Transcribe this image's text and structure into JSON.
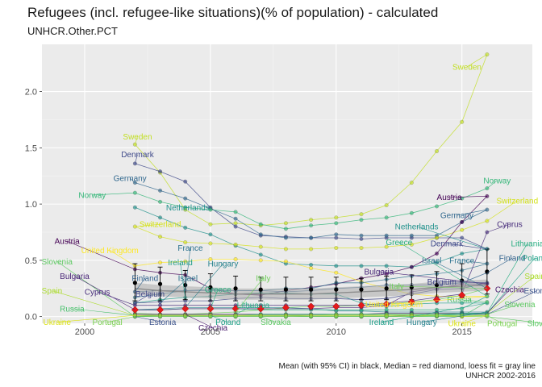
{
  "title": "Refugees (incl. refugee-like situations)(% of population) - calculated",
  "subtitle": "UNHCR.Other.PCT",
  "caption_line1": "Mean (with 95% CI) in black, Median = red diamond, loess fit = gray line",
  "caption_line2": "UNHCR 2002-2016",
  "chart_data": {
    "type": "line",
    "xlim": [
      1998.3,
      2017.8
    ],
    "ylim": [
      -0.06,
      2.42
    ],
    "x_ticks": [
      2000,
      2005,
      2010,
      2015
    ],
    "y_ticks": [
      0.0,
      0.5,
      1.0,
      1.5,
      2.0
    ],
    "x_tick_labels": [
      "2000",
      "2005",
      "2010",
      "2015"
    ],
    "y_tick_labels": [
      "0.0",
      "0.5",
      "1.0",
      "1.5",
      "2.0"
    ],
    "grid": true,
    "x": [
      2002,
      2003,
      2004,
      2005,
      2006,
      2007,
      2008,
      2009,
      2010,
      2011,
      2012,
      2013,
      2014,
      2015,
      2016
    ],
    "series": [
      {
        "name": "Sweden",
        "color": "#c2df23",
        "values": [
          1.53,
          1.28,
          0.95,
          0.82,
          0.83,
          0.81,
          0.83,
          0.86,
          0.88,
          0.91,
          0.99,
          1.19,
          1.47,
          1.73,
          2.33
        ]
      },
      {
        "name": "Denmark",
        "color": "#3e4989",
        "values": [
          1.36,
          1.29,
          1.2,
          0.97,
          0.8,
          0.72,
          0.71,
          0.7,
          0.7,
          0.69,
          0.7,
          0.7,
          0.7,
          0.7,
          0.6
        ]
      },
      {
        "name": "Germany",
        "color": "#31688e",
        "values": [
          1.19,
          1.12,
          1.05,
          0.96,
          0.87,
          0.73,
          0.7,
          0.7,
          0.73,
          0.72,
          0.72,
          0.72,
          0.72,
          0.84,
          0.95
        ]
      },
      {
        "name": "Norway",
        "color": "#35b779",
        "values": [
          1.1,
          1.02,
          0.97,
          0.95,
          0.93,
          0.82,
          0.78,
          0.81,
          0.83,
          0.86,
          0.88,
          0.92,
          0.98,
          1.05,
          1.14
        ]
      },
      {
        "name": "Netherlands",
        "color": "#21918c",
        "values": [
          0.97,
          0.88,
          0.79,
          0.73,
          0.63,
          0.55,
          0.47,
          0.46,
          0.45,
          0.45,
          0.45,
          0.44,
          0.48,
          0.56,
          0.6
        ]
      },
      {
        "name": "Switzerland",
        "color": "#d4e21a",
        "values": [
          0.8,
          0.71,
          0.66,
          0.65,
          0.64,
          0.62,
          0.6,
          0.6,
          0.61,
          0.61,
          0.62,
          0.64,
          0.7,
          0.77,
          0.85
        ]
      },
      {
        "name": "Austria",
        "color": "#440154",
        "values": [
          0.42,
          0.39,
          0.37,
          0.25,
          0.2,
          0.19,
          0.23,
          0.26,
          0.29,
          0.34,
          0.38,
          0.44,
          0.56,
          0.84,
          1.07
        ]
      },
      {
        "name": "United Kingdom",
        "color": "#fde725",
        "values": [
          0.45,
          0.48,
          0.49,
          0.51,
          0.51,
          0.5,
          0.49,
          0.43,
          0.39,
          0.31,
          0.25,
          0.2,
          0.18,
          0.18,
          0.18
        ]
      },
      {
        "name": "France",
        "color": "#2c728e",
        "values": [
          0.17,
          0.2,
          0.23,
          0.24,
          0.23,
          0.23,
          0.25,
          0.25,
          0.3,
          0.3,
          0.33,
          0.36,
          0.38,
          0.41,
          0.47
        ]
      },
      {
        "name": "Ireland",
        "color": "#1f9e89",
        "values": [
          0.12,
          0.15,
          0.17,
          0.18,
          0.2,
          0.21,
          0.21,
          0.2,
          0.2,
          0.12,
          0.09,
          0.11,
          0.12,
          0.12,
          0.12
        ]
      },
      {
        "name": "Hungary",
        "color": "#26828e",
        "values": [
          0.06,
          0.07,
          0.08,
          0.08,
          0.08,
          0.08,
          0.08,
          0.07,
          0.05,
          0.05,
          0.04,
          0.04,
          0.04,
          0.04,
          0.04
        ]
      },
      {
        "name": "Italy",
        "color": "#6ece58",
        "values": [
          0.03,
          0.02,
          0.02,
          0.03,
          0.04,
          0.06,
          0.08,
          0.09,
          0.09,
          0.1,
          0.11,
          0.13,
          0.15,
          0.19,
          0.25
        ]
      },
      {
        "name": "Greece",
        "color": "#29af7f",
        "values": [
          0.06,
          0.06,
          0.07,
          0.07,
          0.07,
          0.06,
          0.06,
          0.06,
          0.06,
          0.06,
          0.06,
          0.06,
          0.06,
          0.07,
          0.18
        ]
      },
      {
        "name": "Finland",
        "color": "#33638d",
        "values": [
          0.22,
          0.23,
          0.23,
          0.23,
          0.23,
          0.23,
          0.22,
          0.23,
          0.25,
          0.26,
          0.28,
          0.28,
          0.28,
          0.3,
          0.39
        ]
      },
      {
        "name": "Belgium",
        "color": "#404688",
        "values": [
          0.12,
          0.13,
          0.14,
          0.14,
          0.16,
          0.17,
          0.16,
          0.16,
          0.16,
          0.15,
          0.16,
          0.2,
          0.24,
          0.25,
          0.3
        ]
      },
      {
        "name": "Bulgaria",
        "color": "#482677",
        "values": [
          0.06,
          0.06,
          0.07,
          0.07,
          0.07,
          0.07,
          0.07,
          0.07,
          0.08,
          0.08,
          0.1,
          0.22,
          0.25,
          0.29,
          0.29
        ]
      },
      {
        "name": "Cyprus",
        "color": "#472d7b",
        "values": [
          0.1,
          0.1,
          0.1,
          0.1,
          0.1,
          0.1,
          0.1,
          0.1,
          0.1,
          0.1,
          0.12,
          0.14,
          0.17,
          0.2,
          0.75
        ]
      },
      {
        "name": "Czechia",
        "color": "#481a6c",
        "values": [
          0.02,
          0.02,
          0.02,
          0.02,
          0.02,
          0.02,
          0.02,
          0.02,
          0.02,
          0.02,
          0.03,
          0.03,
          0.03,
          0.03,
          0.03
        ]
      },
      {
        "name": "Lithuania",
        "color": "#27ad81",
        "values": [
          0.01,
          0.01,
          0.01,
          0.01,
          0.01,
          0.02,
          0.02,
          0.02,
          0.02,
          0.02,
          0.02,
          0.02,
          0.02,
          0.03,
          0.03
        ]
      },
      {
        "name": "Spain",
        "color": "#addc30",
        "values": [
          0.01,
          0.01,
          0.01,
          0.01,
          0.01,
          0.01,
          0.01,
          0.01,
          0.01,
          0.01,
          0.01,
          0.01,
          0.01,
          0.01,
          0.03
        ]
      },
      {
        "name": "Slovenia",
        "color": "#5ec962",
        "values": [
          0.0,
          0.01,
          0.01,
          0.01,
          0.01,
          0.01,
          0.01,
          0.01,
          0.02,
          0.02,
          0.02,
          0.02,
          0.02,
          0.02,
          0.02
        ]
      },
      {
        "name": "Russia",
        "color": "#4ac16d",
        "values": [
          0.01,
          0.01,
          0.01,
          0.01,
          0.01,
          0.01,
          0.01,
          0.0,
          0.0,
          0.0,
          0.0,
          0.0,
          0.0,
          0.0,
          0.13
        ]
      },
      {
        "name": "Estonia",
        "color": "#3b528b",
        "values": [
          0.0,
          0.0,
          0.0,
          0.0,
          0.0,
          0.0,
          0.0,
          0.0,
          0.0,
          0.0,
          0.0,
          0.01,
          0.01,
          0.02,
          0.02
        ]
      },
      {
        "name": "Poland",
        "color": "#1fa187",
        "values": [
          0.0,
          0.01,
          0.01,
          0.01,
          0.01,
          0.01,
          0.01,
          0.01,
          0.01,
          0.01,
          0.01,
          0.01,
          0.01,
          0.02,
          0.03
        ]
      },
      {
        "name": "Slovakia",
        "color": "#5cc863",
        "values": [
          0.0,
          0.0,
          0.0,
          0.0,
          0.0,
          0.0,
          0.0,
          0.0,
          0.0,
          0.0,
          0.0,
          0.0,
          0.0,
          0.0,
          0.0
        ]
      },
      {
        "name": "Ukraine",
        "color": "#dce319",
        "values": [
          0.01,
          0.01,
          0.01,
          0.01,
          0.01,
          0.01,
          0.01,
          0.01,
          0.01,
          0.01,
          0.01,
          0.01,
          0.01,
          0.0,
          0.01
        ]
      },
      {
        "name": "Portugal",
        "color": "#7ad151",
        "values": [
          0.0,
          0.0,
          0.0,
          0.0,
          0.0,
          0.0,
          0.0,
          0.0,
          0.0,
          0.0,
          0.0,
          0.0,
          0.01,
          0.01,
          0.01
        ]
      }
    ],
    "series_labels": [
      {
        "text": "Sweden",
        "series": "Sweden",
        "x": 2002.1,
        "y": 1.6,
        "lx": 2002,
        "ly": 1.53
      },
      {
        "text": "Denmark",
        "series": "Denmark",
        "x": 2002.1,
        "y": 1.44,
        "lx": 2002,
        "ly": 1.36
      },
      {
        "text": "Germany",
        "series": "Germany",
        "x": 2001.8,
        "y": 1.23,
        "lx": 2002,
        "ly": 1.19
      },
      {
        "text": "Norway",
        "series": "Norway",
        "x": 2000.3,
        "y": 1.08,
        "lx": 2002,
        "ly": 1.1
      },
      {
        "text": "Netherlands",
        "series": "Netherlands",
        "x": 2004.1,
        "y": 0.97,
        "lx": 2004,
        "ly": 0.97
      },
      {
        "text": "Switzerland",
        "series": "Switzerland",
        "x": 2003.0,
        "y": 0.82,
        "lx": 2002,
        "ly": 0.8
      },
      {
        "text": "Austria",
        "series": "Austria",
        "x": 1999.3,
        "y": 0.67,
        "lx": 2002,
        "ly": 0.42
      },
      {
        "text": "United Kingdom",
        "series": "United Kingdom",
        "x": 2001.0,
        "y": 0.59,
        "lx": 2002,
        "ly": 0.45
      },
      {
        "text": "France",
        "series": "France",
        "x": 2004.2,
        "y": 0.61,
        "lx": 2004,
        "ly": 0.23
      },
      {
        "text": "Ireland",
        "series": "Ireland",
        "x": 2003.8,
        "y": 0.48,
        "lx": 2004,
        "ly": 0.17
      },
      {
        "text": "Hungary",
        "series": "Hungary",
        "x": 2005.5,
        "y": 0.47,
        "lx": 2004,
        "ly": 0.08
      },
      {
        "text": "Slovenia",
        "series": "Slovenia",
        "x": 1998.9,
        "y": 0.49,
        "lx": 2002,
        "ly": 0.0
      },
      {
        "text": "Bulgaria",
        "series": "Bulgaria",
        "x": 1999.6,
        "y": 0.36,
        "lx": 2002,
        "ly": 0.06
      },
      {
        "text": "Finland",
        "series": "Finland",
        "x": 2002.4,
        "y": 0.34,
        "lx": 2002,
        "ly": 0.22
      },
      {
        "text": "Israel",
        "series": "",
        "x": 2004.1,
        "y": 0.34,
        "lx": 2003,
        "ly": 0.12
      },
      {
        "text": "Italy",
        "series": "Italy",
        "x": 2007.1,
        "y": 0.34,
        "lx": 2006,
        "ly": 0.04
      },
      {
        "text": "Spain",
        "series": "Spain",
        "x": 1998.7,
        "y": 0.23,
        "lx": 2002,
        "ly": 0.01
      },
      {
        "text": "Cyprus",
        "series": "Cyprus",
        "x": 2000.5,
        "y": 0.22,
        "lx": 2002,
        "ly": 0.1
      },
      {
        "text": "Belgium",
        "series": "Belgium",
        "x": 2002.6,
        "y": 0.2,
        "lx": 2002,
        "ly": 0.12
      },
      {
        "text": "Greece",
        "series": "Greece",
        "x": 2005.3,
        "y": 0.24,
        "lx": 2005,
        "ly": 0.07
      },
      {
        "text": "Russia",
        "series": "Russia",
        "x": 1999.5,
        "y": 0.07,
        "lx": 2002,
        "ly": 0.01
      },
      {
        "text": "Czechia",
        "series": "Czechia",
        "x": 2005.1,
        "y": -0.1,
        "lx": 2004,
        "ly": 0.02
      },
      {
        "text": "Lithuania",
        "series": "Lithuania",
        "x": 2006.7,
        "y": 0.1,
        "lx": 2006,
        "ly": 0.02
      },
      {
        "text": "Ukraine",
        "series": "Ukraine",
        "x": 1998.9,
        "y": -0.05,
        "lx": 2002,
        "ly": 0.01
      },
      {
        "text": "Portugal",
        "series": "Portugal",
        "x": 2000.9,
        "y": -0.05,
        "lx": 2002,
        "ly": 0.0
      },
      {
        "text": "Estonia",
        "series": "Estonia",
        "x": 2003.1,
        "y": -0.05,
        "lx": 2002,
        "ly": 0.0
      },
      {
        "text": "Poland",
        "series": "Poland",
        "x": 2005.7,
        "y": -0.05,
        "lx": 2005,
        "ly": 0.01
      },
      {
        "text": "Slovakia",
        "series": "Slovakia",
        "x": 2007.6,
        "y": -0.05,
        "lx": 2007,
        "ly": 0.0
      },
      {
        "text": "Sweden",
        "series": "Sweden",
        "x": 2015.2,
        "y": 2.22,
        "lx": 2016,
        "ly": 2.33
      },
      {
        "text": "Norway",
        "series": "Norway",
        "x": 2016.4,
        "y": 1.21,
        "lx": 2016,
        "ly": 1.14
      },
      {
        "text": "Austria",
        "series": "Austria",
        "x": 2014.5,
        "y": 1.06,
        "lx": 2016,
        "ly": 1.07
      },
      {
        "text": "Switzerland",
        "series": "Switzerland",
        "x": 2017.2,
        "y": 1.03,
        "lx": 2016,
        "ly": 0.85
      },
      {
        "text": "Germany",
        "series": "Germany",
        "x": 2014.8,
        "y": 0.9,
        "lx": 2016,
        "ly": 0.95
      },
      {
        "text": "Netherlands",
        "series": "Netherlands",
        "x": 2013.2,
        "y": 0.8,
        "lx": 2016,
        "ly": 0.6
      },
      {
        "text": "Cyprus",
        "series": "Cyprus",
        "x": 2016.9,
        "y": 0.82,
        "lx": 2016,
        "ly": 0.75
      },
      {
        "text": "Greece",
        "series": "Greece",
        "x": 2012.5,
        "y": 0.66,
        "lx": 2016,
        "ly": 0.18
      },
      {
        "text": "Denmark",
        "series": "Denmark",
        "x": 2014.4,
        "y": 0.65,
        "lx": 2016,
        "ly": 0.6
      },
      {
        "text": "Lithuania",
        "series": "Lithuania",
        "x": 2017.6,
        "y": 0.65,
        "lx": 2016,
        "ly": 0.03
      },
      {
        "text": "Israel",
        "series": "",
        "x": 2013.8,
        "y": 0.5,
        "lx": 2016,
        "ly": 0.25
      },
      {
        "text": "France",
        "series": "France",
        "x": 2015.0,
        "y": 0.5,
        "lx": 2016,
        "ly": 0.47
      },
      {
        "text": "Finland",
        "series": "Finland",
        "x": 2017.0,
        "y": 0.52,
        "lx": 2016,
        "ly": 0.39
      },
      {
        "text": "Poland",
        "series": "Poland",
        "x": 2017.9,
        "y": 0.52,
        "lx": 2016,
        "ly": 0.03
      },
      {
        "text": "Bulgaria",
        "series": "Bulgaria",
        "x": 2011.7,
        "y": 0.4,
        "lx": 2016,
        "ly": 0.29
      },
      {
        "text": "Spain",
        "series": "Spain",
        "x": 2017.9,
        "y": 0.36,
        "lx": 2016,
        "ly": 0.03
      },
      {
        "text": "Belgium",
        "series": "Belgium",
        "x": 2014.2,
        "y": 0.31,
        "lx": 2016,
        "ly": 0.3
      },
      {
        "text": "Italy",
        "series": "Italy",
        "x": 2012.4,
        "y": 0.27,
        "lx": 2016,
        "ly": 0.25
      },
      {
        "text": "Czechia",
        "series": "Czechia",
        "x": 2016.9,
        "y": 0.24,
        "lx": 2016,
        "ly": 0.03
      },
      {
        "text": "Estonia",
        "series": "Estonia",
        "x": 2018.0,
        "y": 0.23,
        "lx": 2016,
        "ly": 0.02
      },
      {
        "text": "Russia",
        "series": "Russia",
        "x": 2014.9,
        "y": 0.15,
        "lx": 2016,
        "ly": 0.13
      },
      {
        "text": "Slovenia",
        "series": "Slovenia",
        "x": 2017.3,
        "y": 0.11,
        "lx": 2016,
        "ly": 0.02
      },
      {
        "text": "United Kingdom",
        "series": "United Kingdom",
        "x": 2012.3,
        "y": 0.11,
        "lx": 2016,
        "ly": 0.18
      },
      {
        "text": "Ireland",
        "series": "Ireland",
        "x": 2011.8,
        "y": -0.05,
        "lx": 2016,
        "ly": 0.12
      },
      {
        "text": "Hungary",
        "series": "Hungary",
        "x": 2013.4,
        "y": -0.05,
        "lx": 2016,
        "ly": 0.04
      },
      {
        "text": "Ukraine",
        "series": "Ukraine",
        "x": 2015.0,
        "y": -0.06,
        "lx": 2016,
        "ly": 0.01
      },
      {
        "text": "Portugal",
        "series": "Portugal",
        "x": 2016.6,
        "y": -0.06,
        "lx": 2016,
        "ly": 0.01
      },
      {
        "text": "Slovakia",
        "series": "Slovakia",
        "x": 2018.2,
        "y": -0.06,
        "lx": 2016,
        "ly": 0.0
      }
    ],
    "mean": {
      "values": [
        0.3,
        0.29,
        0.28,
        0.26,
        0.25,
        0.24,
        0.24,
        0.24,
        0.24,
        0.24,
        0.25,
        0.26,
        0.28,
        0.32,
        0.4
      ],
      "ci_low": [
        0.14,
        0.14,
        0.15,
        0.14,
        0.14,
        0.14,
        0.14,
        0.14,
        0.14,
        0.15,
        0.15,
        0.15,
        0.16,
        0.17,
        0.2
      ],
      "ci_high": [
        0.47,
        0.44,
        0.41,
        0.38,
        0.36,
        0.35,
        0.35,
        0.35,
        0.35,
        0.34,
        0.36,
        0.37,
        0.4,
        0.47,
        0.6
      ]
    },
    "median": [
      0.06,
      0.06,
      0.07,
      0.07,
      0.07,
      0.07,
      0.08,
      0.09,
      0.09,
      0.1,
      0.11,
      0.13,
      0.15,
      0.19,
      0.25
    ],
    "loess": [
      0.25,
      0.23,
      0.22,
      0.21,
      0.2,
      0.2,
      0.2,
      0.2,
      0.21,
      0.22,
      0.23,
      0.24,
      0.26,
      0.27,
      0.28
    ],
    "loess_band_halfwidth": 0.05
  }
}
